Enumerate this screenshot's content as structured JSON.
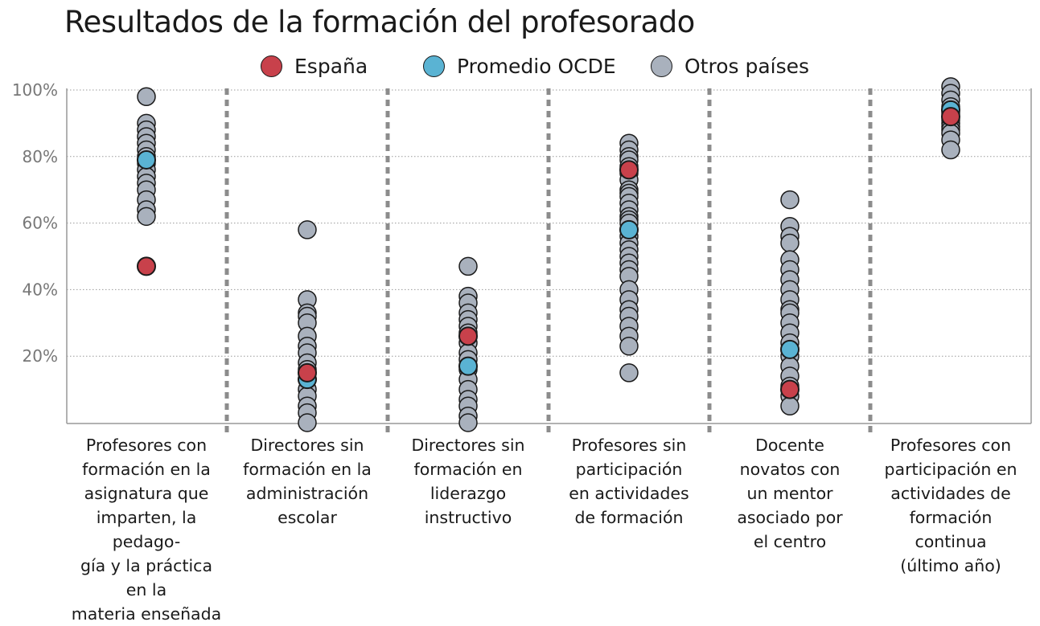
{
  "title": "Resultados de la formación del profesorado",
  "legend": [
    {
      "label": "España",
      "color": "#c8414b"
    },
    {
      "label": "Promedio OCDE",
      "color": "#5ab3d3"
    },
    {
      "label": "Otros países",
      "color": "#a9b1bd"
    }
  ],
  "chart_data": {
    "type": "scatter",
    "title": "Resultados de la formación del profesorado",
    "ylabel": "",
    "ylim": [
      0,
      100
    ],
    "yticks": [
      20,
      40,
      60,
      80,
      100
    ],
    "ytick_labels": [
      "20%",
      "40%",
      "60%",
      "80%",
      "100%"
    ],
    "grid": "horizontal dotted",
    "legend_position": "top",
    "categories": [
      "Profesores con formación en la asignatura que imparten, la pedago-gía y la práctica en la materia enseñada",
      "Directores sin formación en la administración escolar",
      "Directores sin formación en liderazgo instructivo",
      "Profesores sin participación en actividades de formación",
      "Docente novatos con un mentor asociado por el centro",
      "Profesores con participación en actividades de formación continua (último año)"
    ],
    "category_lines": [
      "Profesores con\nformación en la\nasignatura que\nimparten, la pedago-\ngía y la práctica en la\nmateria enseñada",
      "Directores sin\nformación en la\nadministración\nescolar",
      "Directores sin\nformación en\nliderazgo\ninstructivo",
      "Profesores sin\nparticipación\nen actividades\nde formación",
      "Docente\nnovatos con\nun mentor\nasociado por\nel centro",
      "Profesores con\nparticipación en\nactividades de\nformación\ncontinua\n(último año)"
    ],
    "series": [
      {
        "name": "Otros países",
        "color": "#a9b1bd",
        "values": [
          [
            98,
            90,
            88,
            86,
            84,
            82,
            80,
            78,
            76,
            74,
            72,
            70,
            67,
            64,
            62
          ],
          [
            58,
            37,
            33,
            32,
            30,
            26,
            23,
            21,
            18,
            16,
            13,
            10,
            8,
            5,
            3,
            0
          ],
          [
            47,
            38,
            36,
            33,
            31,
            29,
            27,
            24,
            21,
            19,
            16,
            13,
            10,
            7,
            5,
            2,
            0
          ],
          [
            84,
            82,
            80,
            79,
            77,
            75,
            73,
            70,
            69,
            68,
            66,
            64,
            62,
            61,
            60,
            58,
            56,
            54,
            52,
            50,
            48,
            46,
            44,
            40,
            37,
            34,
            32,
            29,
            26,
            23,
            15
          ],
          [
            67,
            59,
            56,
            54,
            49,
            46,
            43,
            40,
            37,
            34,
            33,
            30,
            27,
            24,
            20,
            17,
            14,
            11,
            8,
            5
          ],
          [
            101,
            99,
            97,
            95,
            93,
            91,
            90,
            89,
            88,
            87,
            85,
            82
          ]
        ]
      },
      {
        "name": "Promedio OCDE",
        "color": "#5ab3d3",
        "values": [
          79,
          13,
          17,
          58,
          22,
          94
        ]
      },
      {
        "name": "España",
        "color": "#c8414b",
        "values": [
          47,
          15,
          26,
          76,
          10,
          92
        ]
      }
    ]
  }
}
